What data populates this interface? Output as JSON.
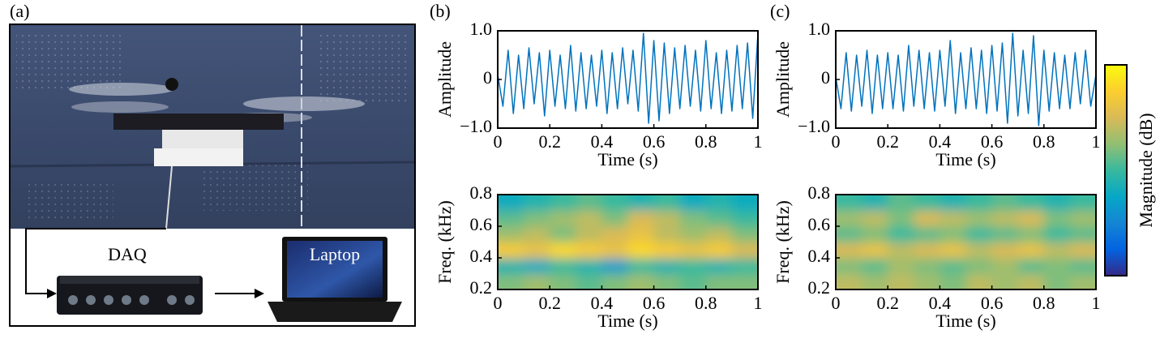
{
  "figure": {
    "panel_labels": [
      "(a)",
      "(b)",
      "(c)"
    ],
    "daq": "DAQ",
    "laptop": "Laptop",
    "colorbar_label": "Magnitude (dB)"
  },
  "chart_data": [
    {
      "type": "line",
      "xlabel": "Time (s)",
      "ylabel": "Amplitude",
      "color": "#0072bd",
      "x": [
        0,
        0.02,
        0.04,
        0.06,
        0.08,
        0.1,
        0.12,
        0.14,
        0.16,
        0.18,
        0.2,
        0.22,
        0.24,
        0.26,
        0.28,
        0.3,
        0.32,
        0.34,
        0.36,
        0.38,
        0.4,
        0.42,
        0.44,
        0.46,
        0.48,
        0.5,
        0.52,
        0.54,
        0.56,
        0.58,
        0.6,
        0.62,
        0.64,
        0.66,
        0.68,
        0.7,
        0.72,
        0.74,
        0.76,
        0.78,
        0.8,
        0.82,
        0.84,
        0.86,
        0.88,
        0.9,
        0.92,
        0.94,
        0.96,
        0.98,
        1
      ],
      "values": [
        0.1,
        -0.55,
        0.6,
        -0.7,
        0.5,
        -0.6,
        0.65,
        -0.5,
        0.55,
        -0.75,
        0.6,
        -0.55,
        0.5,
        -0.6,
        0.7,
        -0.65,
        0.55,
        -0.6,
        0.5,
        -0.55,
        0.6,
        -0.7,
        0.55,
        -0.6,
        0.65,
        -0.5,
        0.6,
        -0.65,
        0.95,
        -0.9,
        0.8,
        -0.85,
        0.75,
        -0.7,
        0.65,
        -0.6,
        0.7,
        -0.55,
        0.6,
        -0.65,
        0.8,
        -0.6,
        0.55,
        -0.7,
        0.6,
        -0.65,
        0.7,
        -0.6,
        0.75,
        -0.8,
        0.95
      ],
      "xlim": [
        0,
        1
      ],
      "ylim": [
        -1,
        1
      ],
      "xticks": [
        0,
        0.2,
        0.4,
        0.6,
        0.8,
        1
      ],
      "yticks": [
        {
          "value": -1,
          "label": "−1.0"
        },
        0,
        {
          "value": 1,
          "label": "1.0"
        }
      ]
    },
    {
      "type": "heatmap",
      "xlabel": "Time (s)",
      "ylabel": "Freq. (kHz)",
      "colormap": "parula",
      "x": [
        0.05,
        0.15,
        0.25,
        0.35,
        0.45,
        0.55,
        0.65,
        0.75,
        0.85,
        0.95
      ],
      "y": [
        0.25,
        0.35,
        0.45,
        0.55,
        0.65,
        0.75
      ],
      "values": [
        [
          0.6,
          0.65,
          0.6,
          0.55,
          0.6,
          0.65,
          0.6,
          0.55,
          0.6,
          0.6
        ],
        [
          0.45,
          0.4,
          0.5,
          0.45,
          0.35,
          0.5,
          0.45,
          0.5,
          0.45,
          0.5
        ],
        [
          0.85,
          0.8,
          0.9,
          0.85,
          0.8,
          0.9,
          0.85,
          0.8,
          0.85,
          0.75
        ],
        [
          0.65,
          0.7,
          0.6,
          0.7,
          0.75,
          0.8,
          0.7,
          0.65,
          0.7,
          0.6
        ],
        [
          0.55,
          0.6,
          0.65,
          0.7,
          0.6,
          0.75,
          0.7,
          0.6,
          0.55,
          0.5
        ],
        [
          0.4,
          0.45,
          0.5,
          0.55,
          0.5,
          0.45,
          0.5,
          0.4,
          0.45,
          0.4
        ]
      ],
      "xlim": [
        0,
        1
      ],
      "ylim": [
        0.2,
        0.8
      ],
      "xticks": [
        0,
        0.2,
        0.4,
        0.6,
        0.8,
        1
      ],
      "yticks": [
        0.2,
        0.4,
        0.6,
        0.8
      ]
    },
    {
      "type": "line",
      "xlabel": "Time (s)",
      "ylabel": "Amplitude",
      "color": "#0072bd",
      "x": [
        0,
        0.02,
        0.04,
        0.06,
        0.08,
        0.1,
        0.12,
        0.14,
        0.16,
        0.18,
        0.2,
        0.22,
        0.24,
        0.26,
        0.28,
        0.3,
        0.32,
        0.34,
        0.36,
        0.38,
        0.4,
        0.42,
        0.44,
        0.46,
        0.48,
        0.5,
        0.52,
        0.54,
        0.56,
        0.58,
        0.6,
        0.62,
        0.64,
        0.66,
        0.68,
        0.7,
        0.72,
        0.74,
        0.76,
        0.78,
        0.8,
        0.82,
        0.84,
        0.86,
        0.88,
        0.9,
        0.92,
        0.94,
        0.96,
        0.98,
        1
      ],
      "values": [
        0.05,
        -0.6,
        0.55,
        -0.65,
        0.5,
        -0.55,
        0.6,
        -0.7,
        0.5,
        -0.6,
        0.55,
        -0.6,
        0.5,
        -0.65,
        0.7,
        -0.55,
        0.6,
        -0.6,
        0.55,
        -0.65,
        0.6,
        -0.55,
        0.8,
        -0.7,
        0.55,
        -0.6,
        0.65,
        -0.6,
        0.6,
        -0.7,
        0.7,
        -0.65,
        0.75,
        -0.9,
        0.95,
        -0.75,
        0.6,
        -0.7,
        0.9,
        -0.95,
        0.6,
        -0.65,
        0.55,
        -0.6,
        0.5,
        -0.6,
        0.55,
        -0.5,
        0.6,
        -0.55,
        0.1
      ],
      "xlim": [
        0,
        1
      ],
      "ylim": [
        -1,
        1
      ],
      "xticks": [
        0,
        0.2,
        0.4,
        0.6,
        0.8,
        1
      ],
      "yticks": [
        {
          "value": -1,
          "label": "−1.0"
        },
        0,
        {
          "value": 1,
          "label": "1.0"
        }
      ]
    },
    {
      "type": "heatmap",
      "xlabel": "Time (s)",
      "ylabel": "Freq. (kHz)",
      "colormap": "parula",
      "x": [
        0.05,
        0.15,
        0.25,
        0.35,
        0.45,
        0.55,
        0.65,
        0.75,
        0.85,
        0.95
      ],
      "y": [
        0.25,
        0.35,
        0.45,
        0.55,
        0.65,
        0.75
      ],
      "values": [
        [
          0.7,
          0.65,
          0.7,
          0.65,
          0.6,
          0.7,
          0.65,
          0.7,
          0.6,
          0.65
        ],
        [
          0.6,
          0.55,
          0.65,
          0.6,
          0.55,
          0.6,
          0.65,
          0.55,
          0.6,
          0.55
        ],
        [
          0.75,
          0.8,
          0.7,
          0.75,
          0.8,
          0.7,
          0.75,
          0.8,
          0.7,
          0.75
        ],
        [
          0.55,
          0.6,
          0.5,
          0.55,
          0.6,
          0.5,
          0.55,
          0.6,
          0.5,
          0.55
        ],
        [
          0.65,
          0.7,
          0.6,
          0.75,
          0.7,
          0.65,
          0.7,
          0.75,
          0.6,
          0.65
        ],
        [
          0.5,
          0.45,
          0.55,
          0.5,
          0.45,
          0.5,
          0.55,
          0.5,
          0.45,
          0.5
        ]
      ],
      "xlim": [
        0,
        1
      ],
      "ylim": [
        0.2,
        0.8
      ],
      "xticks": [
        0,
        0.2,
        0.4,
        0.6,
        0.8,
        1
      ],
      "yticks": [
        0.2,
        0.4,
        0.6,
        0.8
      ]
    }
  ]
}
